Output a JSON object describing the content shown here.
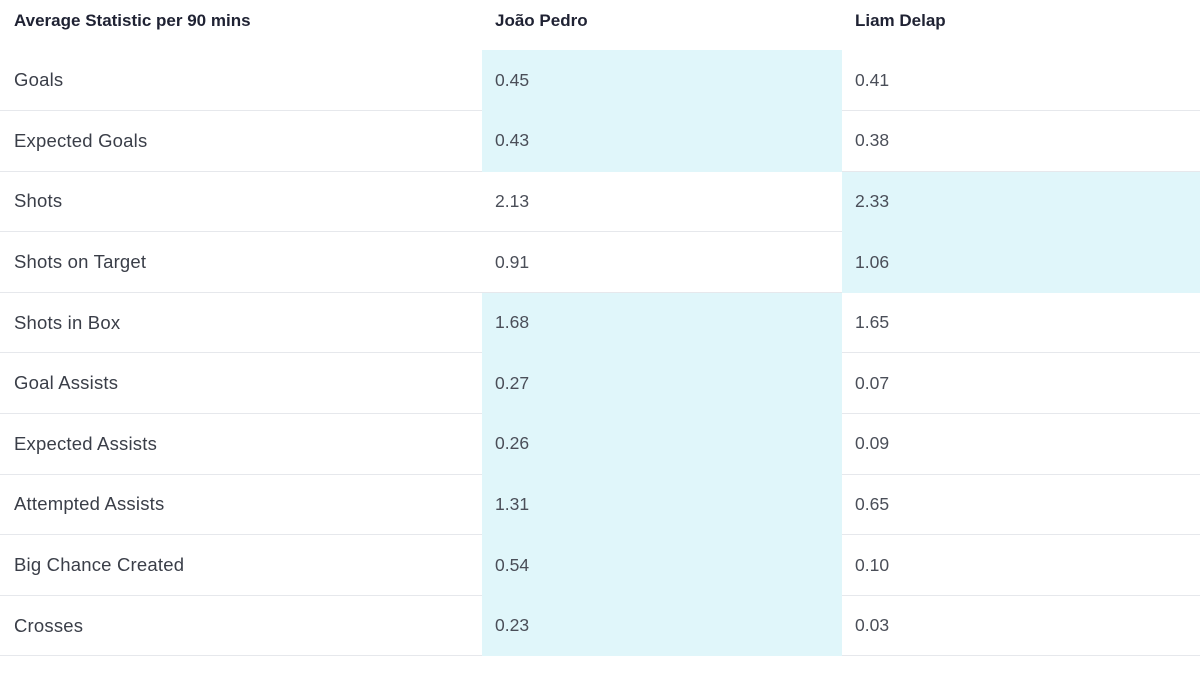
{
  "chart_data": {
    "type": "table",
    "header": {
      "stat_column": "Average Statistic per 90 mins",
      "players": [
        "João Pedro",
        "Liam Delap"
      ]
    },
    "rows": [
      {
        "label": "Goals",
        "values": [
          "0.45",
          "0.41"
        ],
        "leader": 0
      },
      {
        "label": "Expected Goals",
        "values": [
          "0.43",
          "0.38"
        ],
        "leader": 0
      },
      {
        "label": "Shots",
        "values": [
          "2.13",
          "2.33"
        ],
        "leader": 1
      },
      {
        "label": "Shots on Target",
        "values": [
          "0.91",
          "1.06"
        ],
        "leader": 1
      },
      {
        "label": "Shots in Box",
        "values": [
          "1.68",
          "1.65"
        ],
        "leader": 0
      },
      {
        "label": "Goal Assists",
        "values": [
          "0.27",
          "0.07"
        ],
        "leader": 0
      },
      {
        "label": "Expected Assists",
        "values": [
          "0.26",
          "0.09"
        ],
        "leader": 0
      },
      {
        "label": "Attempted Assists",
        "values": [
          "1.31",
          "0.65"
        ],
        "leader": 0
      },
      {
        "label": "Big Chance Created",
        "values": [
          "0.54",
          "0.10"
        ],
        "leader": 0
      },
      {
        "label": "Crosses",
        "values": [
          "0.23",
          "0.03"
        ],
        "leader": 0
      }
    ]
  },
  "colors": {
    "highlight": "#e0f6fa",
    "row_divider": "#e6e8ec",
    "header_text": "#1f2233",
    "body_text": "#3a3e48"
  }
}
